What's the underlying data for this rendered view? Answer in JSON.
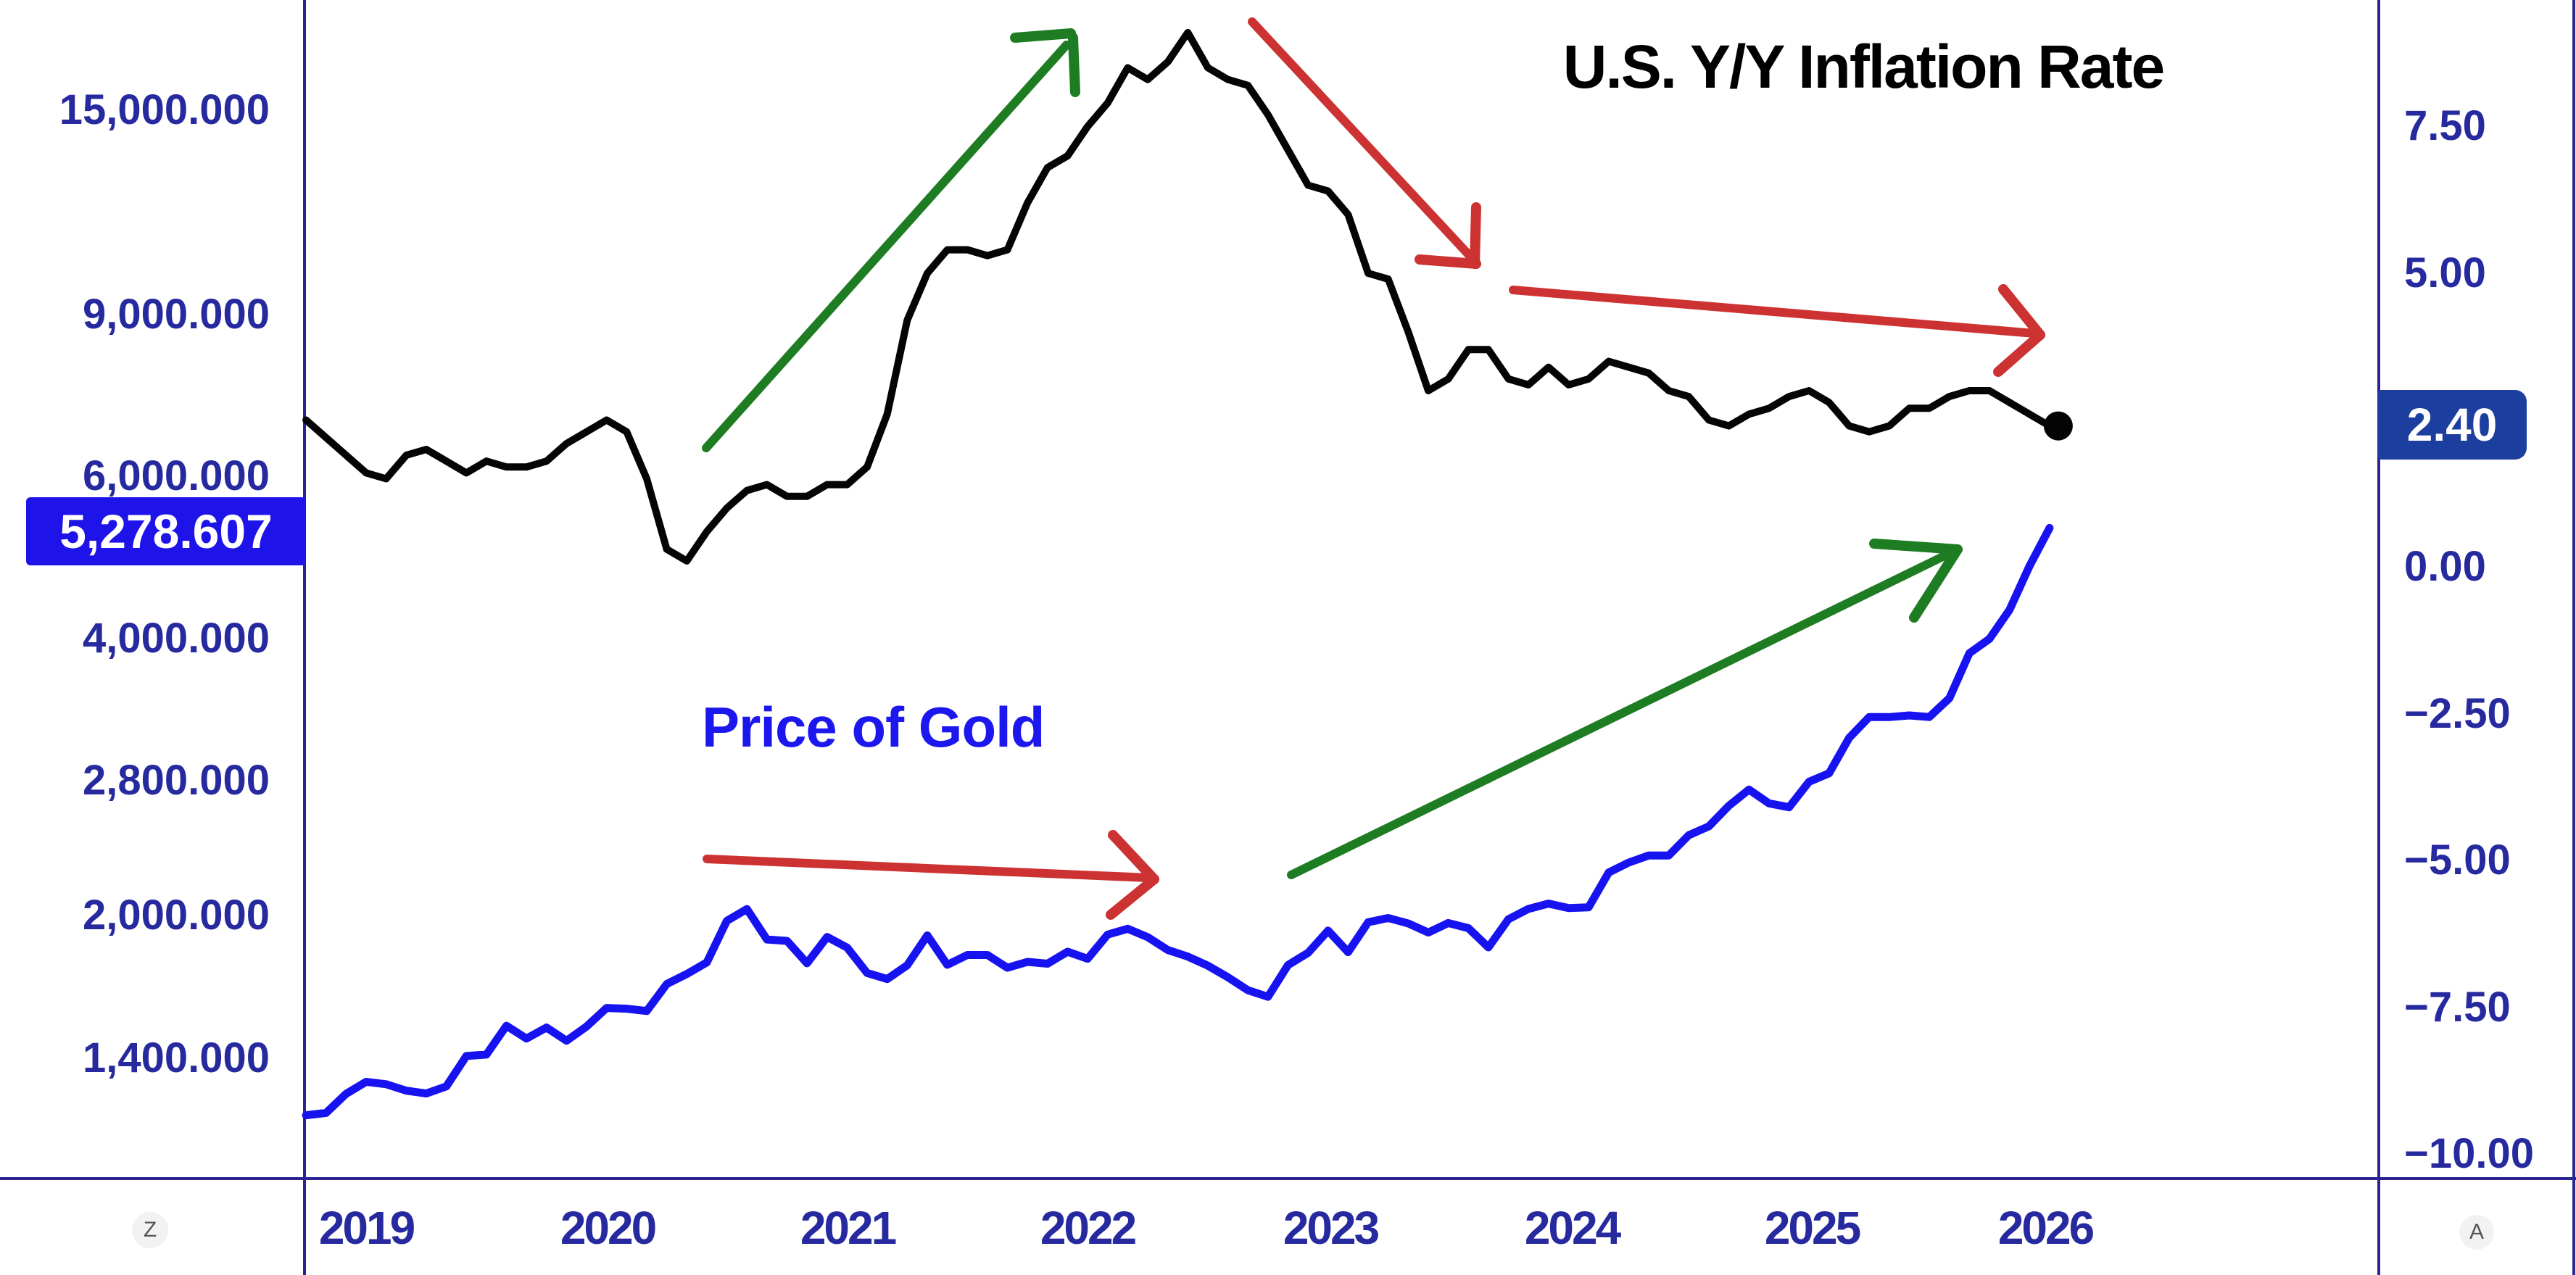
{
  "title": "U.S. Y/Y Inflation Rate",
  "gold_series_label": "Price of Gold",
  "left_axis": {
    "ticks": [
      "15,000.000",
      "9,000.000",
      "6,000.000",
      "4,000.000",
      "2,800.000",
      "2,000.000",
      "1,400.000"
    ],
    "highlight_value": "5,278.607"
  },
  "right_axis": {
    "ticks": [
      "7.50",
      "5.00",
      "0.00",
      "−2.50",
      "−5.00",
      "−7.50",
      "−10.00"
    ],
    "highlight_value": "2.40"
  },
  "x_axis": {
    "years": [
      "2019",
      "2020",
      "2021",
      "2022",
      "2023",
      "2024",
      "2025",
      "2026"
    ]
  },
  "toolbar": {
    "zoom_label": "Z",
    "auto_label": "A"
  },
  "colors": {
    "axis_line": "#2a2492",
    "tick_text": "#262a9e",
    "gold_line": "#1712f0",
    "inflation_line": "#040404",
    "gold_box_bg": "#1e13e8",
    "inflation_box_bg": "#1c3f9f",
    "arrow_red": "#cd3232",
    "arrow_green": "#1e7c22"
  },
  "chart_data": {
    "type": "line",
    "x": {
      "start": "2018-10",
      "end": "2026-01",
      "step": "monthly"
    },
    "x_tick_years": [
      2019,
      2020,
      2021,
      2022,
      2023,
      2024,
      2025,
      2026
    ],
    "left_axis": {
      "scale": "log",
      "tick_values": [
        15000,
        9000,
        6000,
        4000,
        2800,
        2000,
        1400
      ],
      "highlight": 5278.607
    },
    "right_axis": {
      "scale": "linear",
      "tick_values": [
        7.5,
        5.0,
        2.4,
        0.0,
        -2.5,
        -5.0,
        -7.5,
        -10.0
      ],
      "highlight": 2.4
    },
    "series": [
      {
        "name": "U.S. Y/Y Inflation Rate",
        "axis": "right",
        "last_value": 2.4,
        "values": [
          2.5,
          2.2,
          1.9,
          1.6,
          1.5,
          1.9,
          2.0,
          1.8,
          1.6,
          1.8,
          1.7,
          1.7,
          1.8,
          2.1,
          2.3,
          2.5,
          2.3,
          1.5,
          0.3,
          0.1,
          0.6,
          1.0,
          1.3,
          1.4,
          1.2,
          1.2,
          1.4,
          1.4,
          1.7,
          2.6,
          4.2,
          5.0,
          5.4,
          5.4,
          5.3,
          5.4,
          6.2,
          6.8,
          7.0,
          7.5,
          7.9,
          8.5,
          8.3,
          8.6,
          9.1,
          8.5,
          8.3,
          8.2,
          7.7,
          7.1,
          6.5,
          6.4,
          6.0,
          5.0,
          4.9,
          4.0,
          3.0,
          3.2,
          3.7,
          3.7,
          3.2,
          3.1,
          3.4,
          3.1,
          3.2,
          3.5,
          3.4,
          3.3,
          3.0,
          2.9,
          2.5,
          2.4,
          2.6,
          2.7,
          2.9,
          3.0,
          2.8,
          2.4,
          2.3,
          2.4,
          2.7,
          2.7,
          2.9,
          3.0,
          3.0,
          2.8,
          2.6,
          2.4
        ]
      },
      {
        "name": "Price of Gold",
        "axis": "left",
        "last_value": 5278.607,
        "values": [
          1215,
          1222,
          1282,
          1321,
          1313,
          1292,
          1283,
          1306,
          1409,
          1414,
          1520,
          1472,
          1513,
          1464,
          1517,
          1589,
          1586,
          1577,
          1687,
          1730,
          1781,
          1976,
          2035,
          1886,
          1879,
          1777,
          1898,
          1848,
          1734,
          1708,
          1768,
          1905,
          1770,
          1814,
          1814,
          1757,
          1783,
          1775,
          1829,
          1797,
          1909,
          1937,
          1897,
          1837,
          1807,
          1766,
          1716,
          1661,
          1634,
          1769,
          1824,
          1928,
          1827,
          1969,
          1990,
          1963,
          1919,
          1965,
          1940,
          1849,
          1984,
          2036,
          2063,
          2040,
          2044,
          2230,
          2286,
          2327,
          2327,
          2448,
          2503,
          2635,
          2744,
          2651,
          2625,
          2798,
          2858,
          3123,
          3289,
          3289,
          3303,
          3290,
          3448,
          3859,
          4000,
          4300,
          4800,
          5278.607
        ]
      }
    ],
    "annotations": {
      "arrows": [
        {
          "id": "inflation-rise-arrow",
          "color": "green",
          "line": [
            [
              974,
              618
            ],
            [
              1471,
              62
            ]
          ],
          "head": [
            [
              [
                1400,
                52
              ],
              [
                1477,
                46
              ]
            ],
            [
              [
                1480,
                52
              ],
              [
                1483,
                127
              ]
            ]
          ]
        },
        {
          "id": "inflation-fall-arrow",
          "color": "red",
          "line": [
            [
              1727,
              30
            ],
            [
              2030,
              356
            ]
          ],
          "head": [
            [
              [
                2036,
                286
              ],
              [
                2034,
                364
              ]
            ],
            [
              [
                1958,
                358
              ],
              [
                2036,
                364
              ]
            ]
          ]
        },
        {
          "id": "inflation-flat-arrow",
          "color": "red",
          "line": [
            [
              2087,
              400
            ],
            [
              2806,
              460
            ]
          ],
          "head": [
            [
              [
                2763,
                399
              ],
              [
                2814,
                462
              ]
            ],
            [
              [
                2756,
                513
              ],
              [
                2814,
                462
              ]
            ]
          ]
        },
        {
          "id": "gold-flat-arrow",
          "color": "red",
          "line": [
            [
              975,
              1185
            ],
            [
              1584,
              1211
            ]
          ],
          "head": [
            [
              [
                1535,
                1152
              ],
              [
                1592,
                1213
              ]
            ],
            [
              [
                1532,
                1262
              ],
              [
                1592,
                1213
              ]
            ]
          ]
        },
        {
          "id": "gold-rise-arrow",
          "color": "green",
          "line": [
            [
              1781,
              1207
            ],
            [
              2700,
              758
            ]
          ],
          "head": [
            [
              [
                2585,
                750
              ],
              [
                2700,
                758
              ]
            ],
            [
              [
                2640,
                852
              ],
              [
                2700,
                758
              ]
            ]
          ]
        }
      ]
    }
  }
}
